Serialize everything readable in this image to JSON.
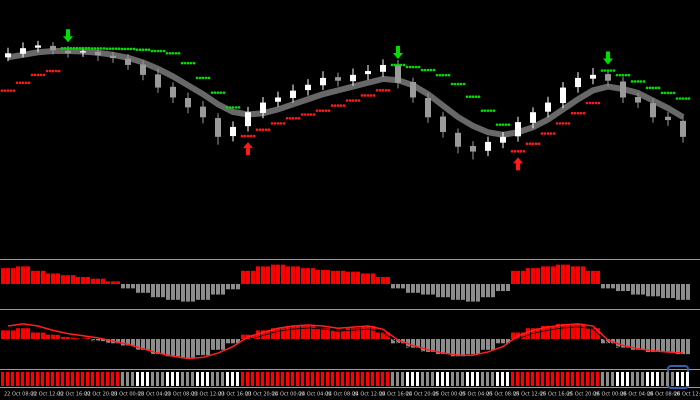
{
  "chart_data": [
    {
      "type": "candlestick",
      "open": [
        79.0,
        80.4,
        82.8,
        83.5,
        81.6,
        80.9,
        81.2,
        79.6,
        78.5,
        76.2,
        72.3,
        67.4,
        63.0,
        59.6,
        55.1,
        48.0,
        51.9,
        57.1,
        61.5,
        63.0,
        66.1,
        68.0,
        71.2,
        69.6,
        72.4,
        73.3,
        76.2,
        69.3,
        63.0,
        55.7,
        49.3,
        44.1,
        42.2,
        45.4,
        47.9,
        53.2,
        57.6,
        61.0,
        67.3,
        70.6,
        72.4,
        69.5,
        63.4,
        61.0,
        55.6,
        54.0
      ],
      "high": [
        82.8,
        84.9,
        85.5,
        85.0,
        83.4,
        83.0,
        82.9,
        81.2,
        80.3,
        77.9,
        74.5,
        69.2,
        65.1,
        61.8,
        57.0,
        53.8,
        59.5,
        63.4,
        65.5,
        68.3,
        70.4,
        73.5,
        73.0,
        74.6,
        76.0,
        78.2,
        78.0,
        71.0,
        64.9,
        57.6,
        51.0,
        46.0,
        47.8,
        49.6,
        55.6,
        59.3,
        63.5,
        69.3,
        73.2,
        74.8,
        74.1,
        71.3,
        65.0,
        62.8,
        57.5,
        55.8
      ],
      "low": [
        77.5,
        79.0,
        81.0,
        80.1,
        78.9,
        79.2,
        77.6,
        76.8,
        74.1,
        70.0,
        65.0,
        61.0,
        57.0,
        53.0,
        44.6,
        45.9,
        49.8,
        55.0,
        59.6,
        61.2,
        64.0,
        66.2,
        67.5,
        67.8,
        70.1,
        71.4,
        66.8,
        61.1,
        53.2,
        47.4,
        41.2,
        38.8,
        40.1,
        43.2,
        45.8,
        51.1,
        55.4,
        59.0,
        65.1,
        68.4,
        67.6,
        61.0,
        59.1,
        53.3,
        52.0,
        45.4
      ],
      "close": [
        80.6,
        82.6,
        83.7,
        81.8,
        80.6,
        81.4,
        79.8,
        78.7,
        76.0,
        72.1,
        67.1,
        63.2,
        59.3,
        55.4,
        47.7,
        51.6,
        57.4,
        61.2,
        63.2,
        65.9,
        68.2,
        70.9,
        69.8,
        72.1,
        73.6,
        76.0,
        69.0,
        63.2,
        55.4,
        49.6,
        43.8,
        41.9,
        45.7,
        47.7,
        53.5,
        57.4,
        61.2,
        67.1,
        70.9,
        72.1,
        69.8,
        63.2,
        61.2,
        55.4,
        54.3,
        47.7
      ],
      "up_color": "#ffffff",
      "down_color": "#9a9a9a",
      "ylim": [
        0,
        100
      ],
      "series": [
        {
          "color": "#7a7a7a",
          "style": "line",
          "values": [
            79.0,
            80.0,
            81.0,
            81.5,
            81.5,
            81.3,
            80.8,
            80.0,
            78.8,
            77.0,
            74.5,
            71.5,
            68.0,
            64.5,
            60.5,
            57.5,
            56.5,
            57.0,
            58.5,
            60.5,
            62.5,
            64.5,
            66.0,
            67.5,
            69.0,
            70.5,
            70.0,
            68.0,
            64.5,
            60.0,
            55.5,
            52.0,
            49.5,
            48.5,
            49.5,
            51.5,
            54.5,
            58.5,
            62.5,
            66.0,
            67.5,
            66.5,
            65.0,
            62.0,
            59.0,
            55.5
          ]
        },
        {
          "color": "#00e000",
          "style": "dots",
          "arrow": "down",
          "values": [
            null,
            null,
            null,
            null,
            82.6,
            82.6,
            82.5,
            82.4,
            82.3,
            82.0,
            81.5,
            80.6,
            76.7,
            70.9,
            65.1,
            59.3,
            null,
            null,
            null,
            null,
            null,
            null,
            null,
            null,
            null,
            null,
            76.0,
            75.2,
            74.0,
            72.0,
            68.5,
            63.5,
            58.0,
            52.5,
            null,
            null,
            null,
            null,
            null,
            null,
            73.8,
            72.0,
            69.5,
            67.0,
            65.0,
            62.8
          ]
        },
        {
          "color": "#ff1a1a",
          "style": "dots",
          "arrow": "up",
          "values": [
            65.9,
            69.0,
            72.1,
            73.6,
            null,
            null,
            null,
            null,
            null,
            null,
            null,
            null,
            null,
            null,
            null,
            null,
            48.0,
            50.5,
            53.0,
            55.0,
            56.5,
            58.0,
            60.0,
            62.0,
            64.0,
            66.0,
            null,
            null,
            null,
            null,
            null,
            null,
            null,
            null,
            42.0,
            45.0,
            49.0,
            53.0,
            57.0,
            61.0,
            null,
            null,
            null,
            null,
            null,
            null
          ]
        }
      ],
      "xtick_labels": [
        "22 Oct 08:00",
        "22 Oct 12:00",
        "22 Oct 16:00",
        "22 Oct 20:00",
        "23 Oct 00:00",
        "23 Oct 04:00",
        "23 Oct 08:00",
        "23 Oct 12:00",
        "23 Oct 16:00",
        "23 Oct 20:00",
        "24 Oct 00:00",
        "24 Oct 04:00",
        "24 Oct 08:00",
        "24 Oct 12:00",
        "24 Oct 16:00",
        "24 Oct 20:00",
        "25 Oct 00:00",
        "25 Oct 04:00",
        "25 Oct 08:00",
        "25 Oct 12:00",
        "25 Oct 16:00",
        "25 Oct 20:00",
        "26 Oct 00:00",
        "26 Oct 04:00",
        "26 Oct 08:00",
        "26 Oct 12:00"
      ]
    },
    {
      "type": "bar",
      "positive_color": "#ff0000",
      "negative_color": "#8c8c8c",
      "ylim": [
        -25,
        25
      ],
      "values": [
        18,
        20,
        15,
        12,
        10,
        8,
        6,
        3,
        -5,
        -10,
        -15,
        -18,
        -20,
        -18,
        -12,
        -6,
        15,
        20,
        22,
        20,
        18,
        16,
        15,
        14,
        12,
        8,
        -5,
        -10,
        -12,
        -15,
        -18,
        -20,
        -15,
        -8,
        15,
        18,
        20,
        22,
        20,
        15,
        -5,
        -8,
        -12,
        -14,
        -16,
        -18
      ]
    },
    {
      "type": "bar",
      "positive_color": "#ff0000",
      "negative_color": "#8c8c8c",
      "ylim": [
        -25,
        25
      ],
      "values": [
        8,
        10,
        6,
        4,
        2,
        1,
        -2,
        -4,
        -6,
        -10,
        -14,
        -16,
        -18,
        -15,
        -10,
        -4,
        4,
        8,
        10,
        12,
        12,
        10,
        8,
        10,
        12,
        6,
        -4,
        -8,
        -12,
        -14,
        -16,
        -14,
        -10,
        -4,
        6,
        10,
        12,
        14,
        14,
        10,
        -4,
        -8,
        -10,
        -12,
        -12,
        -14
      ],
      "line": {
        "color": "#ff2020",
        "values": [
          12,
          14,
          12,
          8,
          5,
          3,
          1,
          -2,
          -5,
          -9,
          -13,
          -16,
          -18,
          -17,
          -13,
          -7,
          2,
          6,
          10,
          12,
          13,
          12,
          10,
          11,
          12,
          9,
          -1,
          -6,
          -10,
          -13,
          -15,
          -15,
          -12,
          -7,
          3,
          8,
          11,
          13,
          14,
          12,
          -1,
          -6,
          -9,
          -11,
          -12,
          -13
        ]
      }
    }
  ]
}
